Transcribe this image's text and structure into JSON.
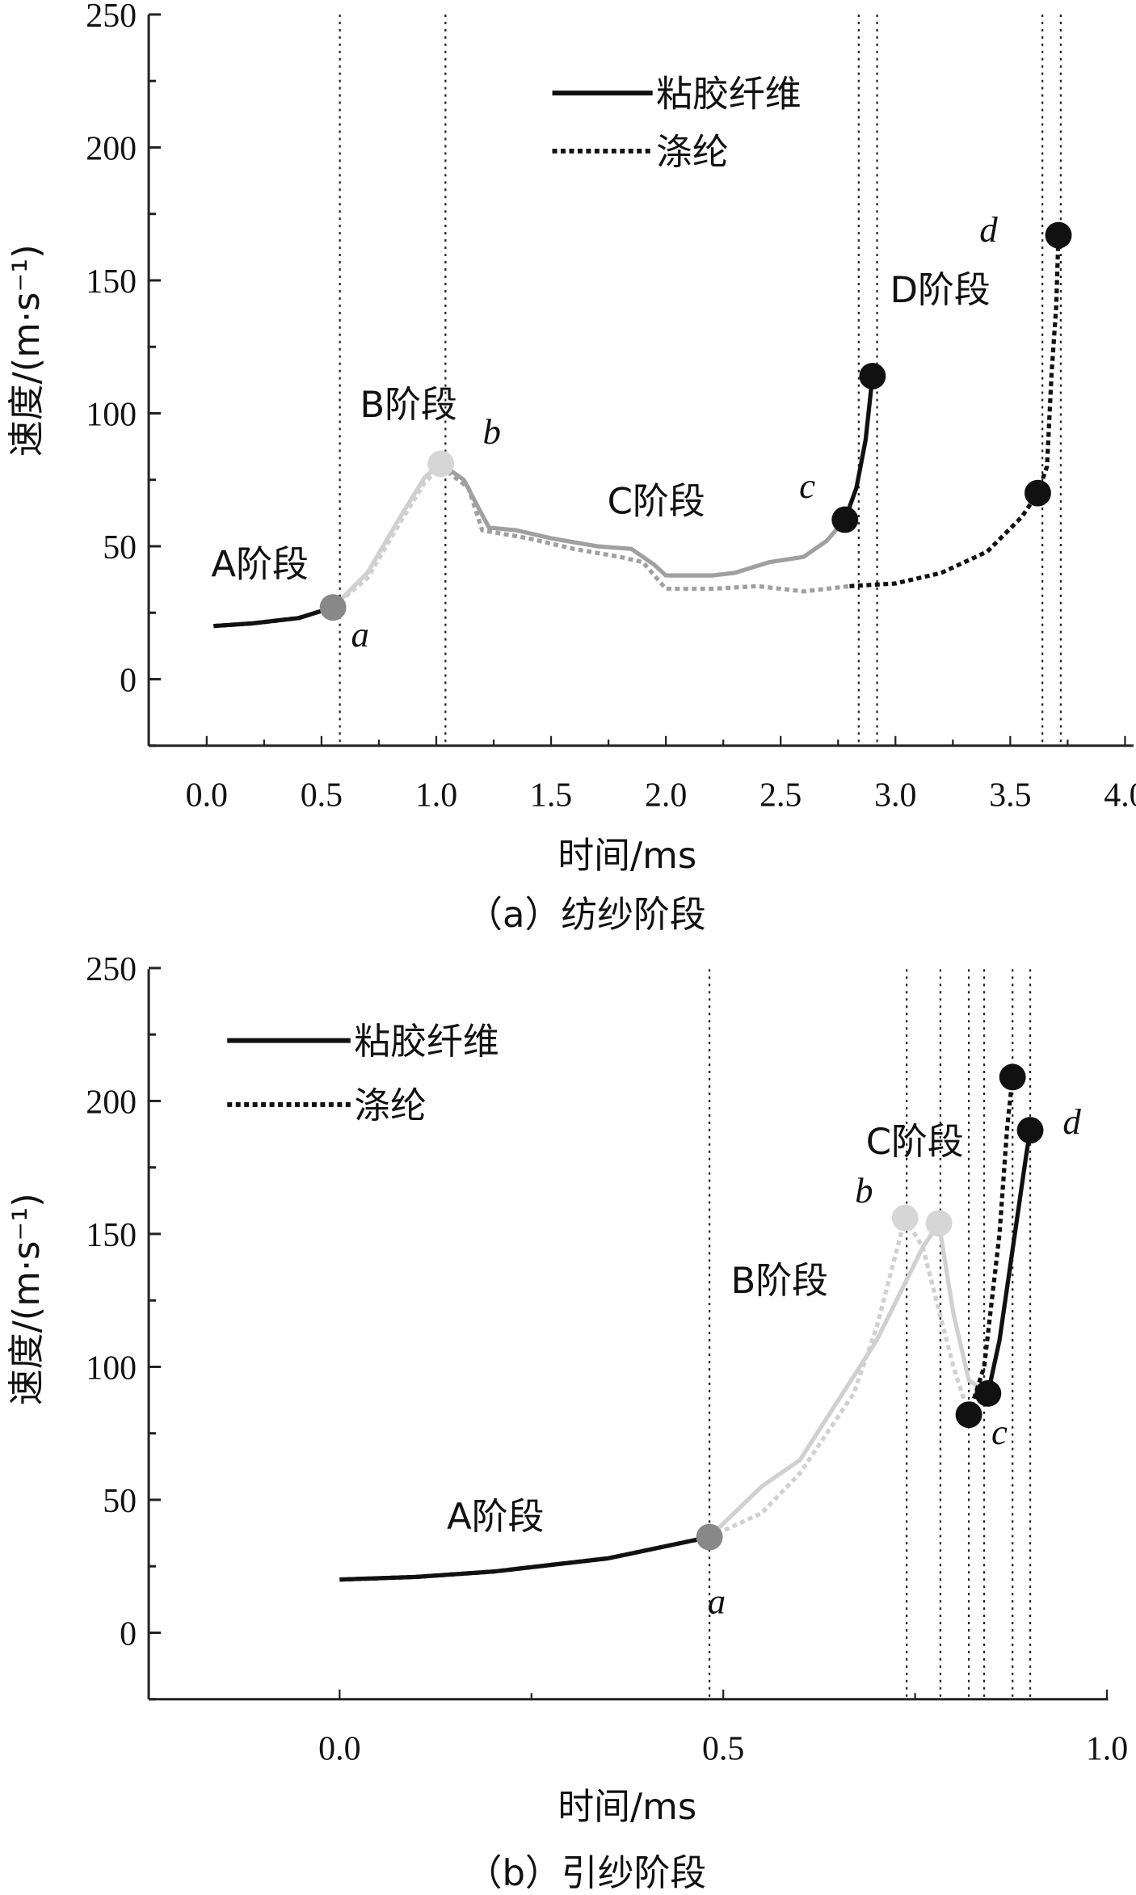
{
  "colors": {
    "A": "#111111",
    "B": "#d0d0d0",
    "C_a": "#a0a0a0",
    "C_b": "#d0d0d0",
    "D": "#111111",
    "point_a": "#888888",
    "point_b": "#d6d6d6",
    "point_dark": "#111111"
  },
  "chart_data": [
    {
      "type": "line",
      "caption": "（a）纺纱阶段",
      "xlabel": "时间/ms",
      "ylabel": "速度/(m·s⁻¹)",
      "xlim": [
        -0.25,
        4.05
      ],
      "ylim": [
        -25,
        250
      ],
      "xticks": [
        "0.0",
        "0.5",
        "1.0",
        "1.5",
        "2.0",
        "2.5",
        "3.0",
        "3.5",
        "4.0"
      ],
      "yticks": [
        "0",
        "50",
        "100",
        "150",
        "200",
        "250"
      ],
      "legend": {
        "placement": "top-center",
        "entries": [
          "粘胶纤维",
          "涤纶"
        ]
      },
      "vlines": [
        0.58,
        1.04,
        2.84,
        2.92,
        3.64,
        3.72
      ],
      "stage_labels": [
        "A阶段",
        "B阶段",
        "C阶段",
        "D阶段"
      ],
      "point_labels": [
        "a",
        "b",
        "c",
        "d"
      ],
      "series": [
        {
          "name": "粘胶纤维",
          "style": "solid",
          "stages": {
            "A": [
              [
                0.03,
                20
              ],
              [
                0.2,
                21
              ],
              [
                0.4,
                23
              ],
              [
                0.55,
                27
              ]
            ],
            "B": [
              [
                0.55,
                27
              ],
              [
                0.7,
                40
              ],
              [
                0.85,
                62
              ],
              [
                0.95,
                76
              ],
              [
                1.02,
                81
              ]
            ],
            "C": [
              [
                1.02,
                81
              ],
              [
                1.12,
                75
              ],
              [
                1.18,
                65
              ],
              [
                1.23,
                57
              ],
              [
                1.35,
                56
              ],
              [
                1.5,
                53
              ],
              [
                1.7,
                50
              ],
              [
                1.85,
                49
              ],
              [
                1.95,
                43
              ],
              [
                2.0,
                39
              ],
              [
                2.2,
                39
              ],
              [
                2.3,
                40
              ],
              [
                2.45,
                44
              ],
              [
                2.6,
                46
              ],
              [
                2.7,
                52
              ],
              [
                2.78,
                60
              ]
            ],
            "D": [
              [
                2.78,
                60
              ],
              [
                2.83,
                72
              ],
              [
                2.87,
                90
              ],
              [
                2.9,
                114
              ]
            ]
          }
        },
        {
          "name": "涤纶",
          "style": "dotted",
          "stages": {
            "A": [
              [
                0.03,
                20
              ],
              [
                0.2,
                21
              ],
              [
                0.4,
                23
              ],
              [
                0.55,
                27
              ]
            ],
            "B": [
              [
                0.55,
                27
              ],
              [
                0.7,
                38
              ],
              [
                0.85,
                60
              ],
              [
                0.95,
                74
              ],
              [
                1.02,
                80
              ]
            ],
            "C": [
              [
                1.02,
                80
              ],
              [
                1.14,
                72
              ],
              [
                1.2,
                56
              ],
              [
                1.4,
                53
              ],
              [
                1.6,
                49
              ],
              [
                1.8,
                46
              ],
              [
                1.9,
                44
              ],
              [
                2.0,
                34
              ],
              [
                2.2,
                34
              ],
              [
                2.4,
                35
              ],
              [
                2.6,
                33
              ],
              [
                2.8,
                35
              ]
            ],
            "D": [
              [
                2.8,
                35
              ],
              [
                3.0,
                36
              ],
              [
                3.2,
                40
              ],
              [
                3.4,
                48
              ],
              [
                3.55,
                61
              ],
              [
                3.62,
                70
              ],
              [
                3.66,
                80
              ],
              [
                3.68,
                115
              ],
              [
                3.7,
                140
              ],
              [
                3.71,
                167
              ]
            ]
          }
        }
      ],
      "points": [
        {
          "label": "a",
          "x": 0.55,
          "y": 27,
          "tone": "point_a"
        },
        {
          "label": "b",
          "x": 1.02,
          "y": 81,
          "tone": "point_b"
        },
        {
          "label": "c",
          "x": 2.78,
          "y": 60,
          "tone": "point_dark"
        },
        {
          "label": "",
          "x": 2.9,
          "y": 114,
          "tone": "point_dark"
        },
        {
          "label": "",
          "x": 3.62,
          "y": 70,
          "tone": "point_dark"
        },
        {
          "label": "d",
          "x": 3.71,
          "y": 167,
          "tone": "point_dark"
        }
      ]
    },
    {
      "type": "line",
      "caption": "（b）引纱阶段",
      "xlabel": "时间/ms",
      "ylabel": "速度/(m·s⁻¹)",
      "xlim": [
        -0.25,
        1.0
      ],
      "ylim": [
        -25,
        250
      ],
      "xticks": [
        "0.0",
        "0.5",
        "1.0"
      ],
      "yticks": [
        "0",
        "50",
        "100",
        "150",
        "200",
        "250"
      ],
      "legend": {
        "placement": "top-left",
        "entries": [
          "粘胶纤维",
          "涤纶"
        ]
      },
      "vlines": [
        0.482,
        0.739,
        0.783,
        0.82,
        0.84,
        0.877,
        0.9
      ],
      "stage_labels": [
        "A阶段",
        "B阶段",
        "C阶段"
      ],
      "point_labels": [
        "a",
        "b",
        "c",
        "d"
      ],
      "series": [
        {
          "name": "粘胶纤维",
          "style": "solid",
          "stages": {
            "A": [
              [
                0,
                20
              ],
              [
                0.1,
                21
              ],
              [
                0.2,
                23
              ],
              [
                0.35,
                28
              ],
              [
                0.482,
                36
              ]
            ],
            "B": [
              [
                0.482,
                36
              ],
              [
                0.55,
                55
              ],
              [
                0.6,
                65
              ],
              [
                0.7,
                110
              ],
              [
                0.76,
                145
              ],
              [
                0.781,
                154
              ]
            ],
            "C": [
              [
                0.781,
                154
              ],
              [
                0.8,
                120
              ],
              [
                0.82,
                95
              ],
              [
                0.845,
                90
              ]
            ],
            "D": [
              [
                0.845,
                90
              ],
              [
                0.86,
                110
              ],
              [
                0.88,
                150
              ],
              [
                0.895,
                180
              ],
              [
                0.9,
                189
              ]
            ]
          }
        },
        {
          "name": "涤纶",
          "style": "dotted",
          "stages": {
            "A": [
              [
                0,
                20
              ],
              [
                0.1,
                21
              ],
              [
                0.2,
                23
              ],
              [
                0.35,
                28
              ],
              [
                0.482,
                36
              ]
            ],
            "B": [
              [
                0.482,
                36
              ],
              [
                0.55,
                45
              ],
              [
                0.6,
                60
              ],
              [
                0.67,
                90
              ],
              [
                0.7,
                115
              ],
              [
                0.737,
                156
              ]
            ],
            "C": [
              [
                0.737,
                156
              ],
              [
                0.76,
                145
              ],
              [
                0.8,
                100
              ],
              [
                0.82,
                82
              ]
            ],
            "D": [
              [
                0.82,
                82
              ],
              [
                0.84,
                100
              ],
              [
                0.86,
                150
              ],
              [
                0.87,
                190
              ],
              [
                0.877,
                209
              ]
            ]
          }
        }
      ],
      "points": [
        {
          "label": "a",
          "x": 0.482,
          "y": 36,
          "tone": "point_a"
        },
        {
          "label": "b",
          "x": 0.737,
          "y": 156,
          "tone": "point_b"
        },
        {
          "label": "",
          "x": 0.781,
          "y": 154,
          "tone": "point_b"
        },
        {
          "label": "",
          "x": 0.82,
          "y": 82,
          "tone": "point_dark"
        },
        {
          "label": "c",
          "x": 0.845,
          "y": 90,
          "tone": "point_dark"
        },
        {
          "label": "",
          "x": 0.877,
          "y": 209,
          "tone": "point_dark"
        },
        {
          "label": "d",
          "x": 0.9,
          "y": 189,
          "tone": "point_dark"
        }
      ]
    }
  ]
}
